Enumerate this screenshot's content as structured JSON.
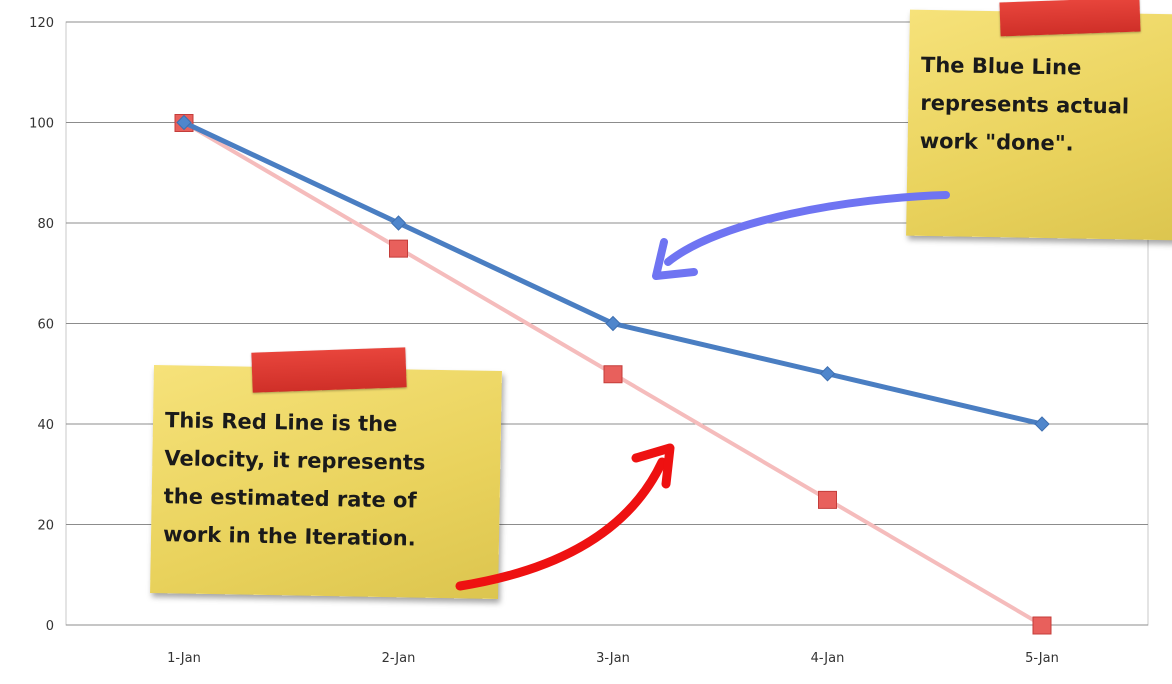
{
  "chart_data": {
    "type": "line",
    "categories": [
      "1-Jan",
      "2-Jan",
      "3-Jan",
      "4-Jan",
      "5-Jan"
    ],
    "series": [
      {
        "values": [
          100,
          80,
          60,
          50,
          40
        ],
        "color": "#4a7ec2",
        "marker": "diamond"
      },
      {
        "values": [
          100,
          75,
          50,
          25,
          0
        ],
        "color": "#f5bcbc",
        "marker": "square"
      }
    ],
    "ylim": [
      0,
      120
    ],
    "yticks": [
      "0",
      "20",
      "40",
      "60",
      "80",
      "100",
      "120"
    ],
    "grid": true,
    "title": "",
    "xlabel": "",
    "ylabel": ""
  },
  "annotations": {
    "blue_note": "The Blue Line\nrepresents actual\nwork \"done\".",
    "red_note": "This Red Line is the\nVelocity, it represents\nthe estimated rate of\nwork in the Iteration.",
    "blue_arrow_color": "#6f74f2",
    "red_arrow_color": "#ee1111",
    "note_color": "#ecd660",
    "tape_color": "#d9342c"
  }
}
